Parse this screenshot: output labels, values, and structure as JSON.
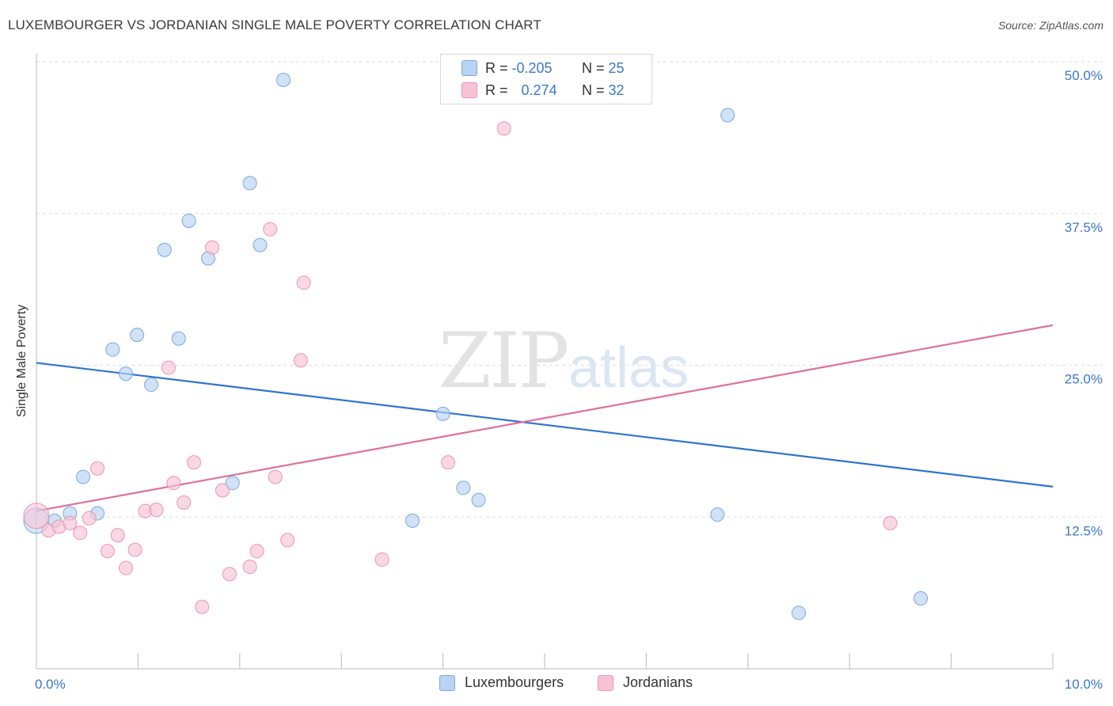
{
  "title": "LUXEMBOURGER VS JORDANIAN SINGLE MALE POVERTY CORRELATION CHART",
  "source": "Source: ZipAtlas.com",
  "watermark": {
    "part1": "ZIP",
    "part2": "atlas"
  },
  "legend_top": [
    {
      "r_label": "R =",
      "r_value": "-0.205",
      "n_label": "N =",
      "n_value": "25"
    },
    {
      "r_label": "R =",
      "r_value": "0.274",
      "n_label": "N =",
      "n_value": "32"
    }
  ],
  "legend_bottom": [
    "Luxembourgers",
    "Jordanians"
  ],
  "colors": {
    "blue_fill": "#b9d3f2",
    "blue_stroke": "#7aa8e0",
    "blue_line": "#2f74d0",
    "pink_fill": "#f7c3d4",
    "pink_stroke": "#eb94b0",
    "pink_line": "#e0709a",
    "tick_text": "#3a78c9",
    "grid": "#dddddd"
  },
  "chart_data": {
    "type": "scatter",
    "title": "LUXEMBOURGER VS JORDANIAN SINGLE MALE POVERTY CORRELATION CHART",
    "xlabel": "",
    "ylabel": "Single Male Poverty",
    "xlim": [
      0,
      10
    ],
    "ylim": [
      0,
      50
    ],
    "x_tick_labels": [
      "0.0%",
      "10.0%"
    ],
    "y_tick_values": [
      12.5,
      25.0,
      37.5,
      50.0
    ],
    "y_tick_labels": [
      "12.5%",
      "25.0%",
      "37.5%",
      "50.0%"
    ],
    "grid": "horizontal dashed",
    "legend_placement": "top-center",
    "series": [
      {
        "name": "Luxembourgers",
        "R": -0.205,
        "N": 25,
        "trend": {
          "x": [
            0,
            10
          ],
          "y": [
            25.2,
            15.0
          ]
        },
        "points": [
          [
            0.0,
            12.2
          ],
          [
            0.18,
            12.2
          ],
          [
            0.33,
            12.8
          ],
          [
            0.46,
            15.8
          ],
          [
            0.6,
            12.8
          ],
          [
            0.75,
            26.3
          ],
          [
            0.88,
            24.3
          ],
          [
            0.99,
            27.5
          ],
          [
            1.13,
            23.4
          ],
          [
            1.26,
            34.5
          ],
          [
            1.4,
            27.2
          ],
          [
            1.5,
            36.9
          ],
          [
            1.69,
            33.8
          ],
          [
            1.93,
            15.3
          ],
          [
            2.1,
            40.0
          ],
          [
            2.2,
            34.9
          ],
          [
            2.43,
            48.5
          ],
          [
            3.7,
            12.2
          ],
          [
            4.0,
            21.0
          ],
          [
            4.2,
            14.9
          ],
          [
            4.35,
            13.9
          ],
          [
            6.7,
            12.7
          ],
          [
            6.8,
            45.6
          ],
          [
            7.5,
            4.6
          ],
          [
            8.7,
            5.8
          ]
        ]
      },
      {
        "name": "Jordanians",
        "R": 0.274,
        "N": 32,
        "trend": {
          "x": [
            0,
            10
          ],
          "y": [
            13.0,
            28.3
          ]
        },
        "points": [
          [
            0.0,
            12.6
          ],
          [
            0.12,
            11.4
          ],
          [
            0.22,
            11.7
          ],
          [
            0.33,
            12.0
          ],
          [
            0.43,
            11.2
          ],
          [
            0.52,
            12.4
          ],
          [
            0.6,
            16.5
          ],
          [
            0.7,
            9.7
          ],
          [
            0.8,
            11.0
          ],
          [
            0.88,
            8.3
          ],
          [
            0.97,
            9.8
          ],
          [
            1.07,
            13.0
          ],
          [
            1.18,
            13.1
          ],
          [
            1.3,
            24.8
          ],
          [
            1.35,
            15.3
          ],
          [
            1.45,
            13.7
          ],
          [
            1.55,
            17.0
          ],
          [
            1.63,
            5.1
          ],
          [
            1.73,
            34.7
          ],
          [
            1.83,
            14.7
          ],
          [
            1.9,
            7.8
          ],
          [
            2.1,
            8.4
          ],
          [
            2.17,
            9.7
          ],
          [
            2.3,
            36.2
          ],
          [
            2.35,
            15.8
          ],
          [
            2.47,
            10.6
          ],
          [
            2.6,
            25.4
          ],
          [
            2.63,
            31.8
          ],
          [
            3.4,
            9.0
          ],
          [
            4.05,
            17.0
          ],
          [
            4.6,
            44.5
          ],
          [
            8.4,
            12.0
          ]
        ]
      }
    ]
  }
}
